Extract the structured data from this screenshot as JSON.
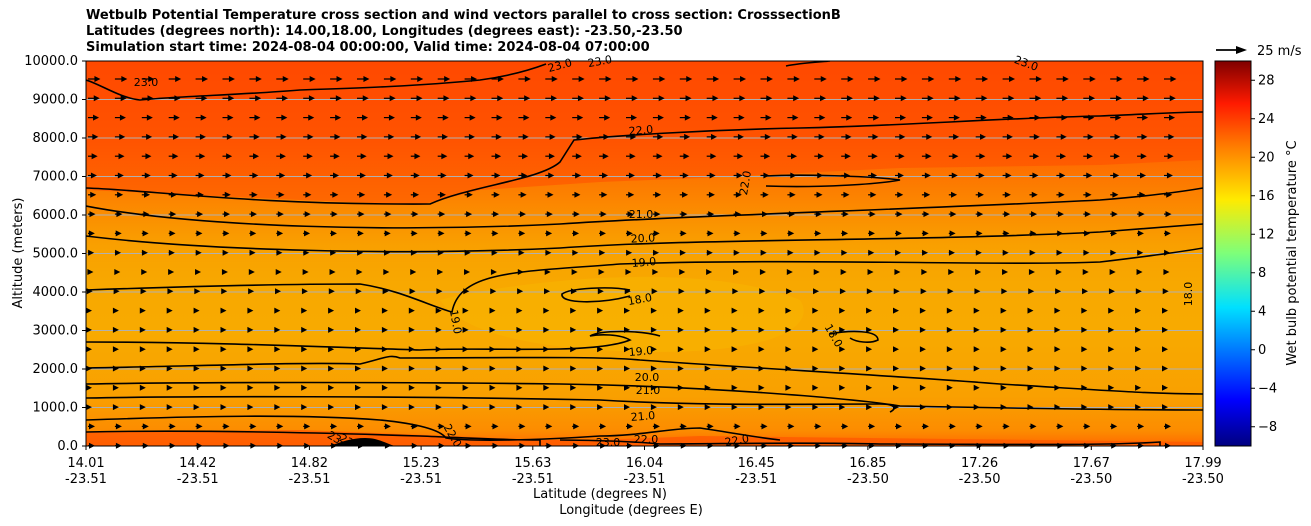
{
  "chart_data": {
    "type": "contour",
    "title": [
      "Wetbulb Potential Temperature cross section and wind vectors parallel to cross section: CrosssectionB",
      "Latitudes (degrees north): 14.00,18.00, Longitudes (degrees east): -23.50,-23.50",
      "Simulation start time: 2024-08-04 00:00:00, Valid time: 2024-08-04 07:00:00"
    ],
    "xlabel_lat": "Latitude (degrees N)",
    "xlabel_lon": "Longitude (degrees E)",
    "ylabel": "Altitude (meters)",
    "ylim": [
      0,
      10000
    ],
    "yticks": [
      "0.0",
      "1000.0",
      "2000.0",
      "3000.0",
      "4000.0",
      "5000.0",
      "6000.0",
      "7000.0",
      "8000.0",
      "9000.0",
      "10000.0"
    ],
    "xticks_lat": [
      "14.01",
      "14.42",
      "14.82",
      "15.23",
      "15.63",
      "16.04",
      "16.45",
      "16.85",
      "17.26",
      "17.67",
      "17.99"
    ],
    "xticks_lon": [
      "-23.51",
      "-23.51",
      "-23.51",
      "-23.51",
      "-23.51",
      "-23.51",
      "-23.51",
      "-23.50",
      "-23.50",
      "-23.50",
      "-23.50"
    ],
    "colorbar_label": "Wet bulb potential temperature $^\\circ$C",
    "colorbar_label_display": "Wet bulb potential temperature °C",
    "colorbar_ticks": [
      "−8",
      "−4",
      "0",
      "4",
      "8",
      "12",
      "16",
      "20",
      "24",
      "28"
    ],
    "colorbar_range": [
      -10,
      30
    ],
    "quiver_key": "25 m/s",
    "contour_levels": [
      {
        "value": 18.0,
        "label": "18.0"
      },
      {
        "value": 19.0,
        "label": "19.0"
      },
      {
        "value": 20.0,
        "label": "20.0"
      },
      {
        "value": 21.0,
        "label": "21.0"
      },
      {
        "value": 22.0,
        "label": "22.0"
      },
      {
        "value": 23.0,
        "label": "23.0"
      }
    ],
    "contour_label_texts": [
      "23.0",
      "23.0",
      "23.0",
      "23.0",
      "22.0",
      "22.0",
      "21.0",
      "20.0",
      "19.0",
      "18.0",
      "19.0",
      "18.0",
      "18.0",
      "19.0",
      "20.0",
      "21.0",
      "21.0",
      "22.0",
      "22.0",
      "23.0",
      "22.0",
      "23",
      "23"
    ],
    "colors": {
      "warm_low": "#f7a400",
      "warm_mid": "#fb8200",
      "warm_high": "#ff4c00",
      "contour": "#000000"
    }
  }
}
